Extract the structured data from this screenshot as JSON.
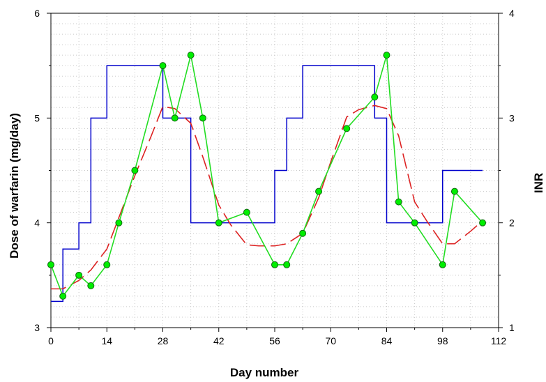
{
  "chart_data": {
    "type": "line",
    "xlabel": "Day number",
    "ylabel": "Dose of warfarin (mg/day)",
    "y2label": "INR",
    "xlim": [
      0,
      112
    ],
    "ylim": [
      3,
      6
    ],
    "y2lim": [
      1,
      4
    ],
    "xticks": [
      0,
      14,
      28,
      42,
      56,
      70,
      84,
      98,
      112
    ],
    "yticks": [
      3,
      4,
      5,
      6
    ],
    "y2ticks": [
      1,
      2,
      3,
      4
    ],
    "grid": true,
    "colors": {
      "dose": "#0000cc",
      "inr": "#22dd22",
      "marker": "#00ee00",
      "trend": "#dd2222",
      "grid": "#c8c8c8"
    },
    "series": [
      {
        "axis": "left",
        "style": "step",
        "x": [
          0,
          3,
          3,
          7,
          7,
          10,
          10,
          14,
          14,
          28,
          28,
          35,
          35,
          56,
          56,
          59,
          59,
          63,
          63,
          81,
          81,
          84,
          84,
          98,
          98,
          108
        ],
        "y": [
          3.25,
          3.25,
          3.75,
          3.75,
          4.0,
          4.0,
          5.0,
          5.0,
          5.5,
          5.5,
          5.0,
          5.0,
          4.0,
          4.0,
          4.5,
          4.5,
          5.0,
          5.0,
          5.5,
          5.5,
          5.0,
          5.0,
          4.0,
          4.0,
          4.5,
          4.5
        ]
      },
      {
        "axis": "right",
        "style": "line-markers",
        "x": [
          0,
          3,
          7,
          10,
          14,
          17,
          21,
          28,
          31,
          35,
          38,
          42,
          49,
          56,
          59,
          63,
          67,
          74,
          81,
          84,
          87,
          91,
          98,
          101,
          108
        ],
        "y": [
          1.6,
          1.3,
          1.5,
          1.4,
          1.6,
          2.0,
          2.5,
          3.5,
          3.0,
          3.6,
          3.0,
          2.0,
          2.1,
          1.6,
          1.6,
          1.9,
          2.3,
          2.9,
          3.2,
          3.6,
          2.2,
          2.0,
          1.6,
          2.3,
          2.0
        ]
      },
      {
        "axis": "right",
        "style": "dashed",
        "x": [
          0,
          3,
          7,
          10,
          14,
          17,
          21,
          25,
          28,
          31,
          35,
          38,
          42,
          45,
          49,
          52,
          56,
          59,
          63,
          67,
          70,
          74,
          77,
          81,
          84,
          87,
          91,
          94,
          98,
          101,
          105,
          108
        ],
        "y": [
          1.37,
          1.37,
          1.45,
          1.55,
          1.75,
          2.05,
          2.45,
          2.82,
          3.11,
          3.09,
          2.95,
          2.63,
          2.17,
          1.98,
          1.79,
          1.78,
          1.78,
          1.8,
          1.9,
          2.24,
          2.58,
          3.01,
          3.08,
          3.12,
          3.09,
          2.83,
          2.2,
          2.02,
          1.8,
          1.8,
          1.92,
          2.02
        ]
      }
    ]
  }
}
